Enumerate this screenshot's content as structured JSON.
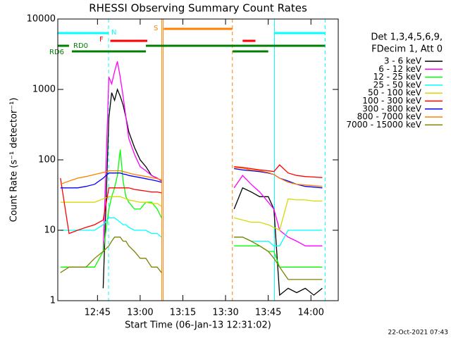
{
  "chart_data": {
    "type": "line",
    "title": "RHESSI Observing Summary Count Rates",
    "xlabel": "Start Time (06-Jan-13 12:31:02)",
    "ylabel": "Count Rate (s⁻¹ detector⁻¹)",
    "legend_header": [
      "Det 1,3,4,5,6,9,",
      "FDecim 1, Att 0"
    ],
    "footer": "22-Oct-2021 07:43",
    "log_y": true,
    "xlim": [
      31.05,
      129.6
    ],
    "ylim": [
      1,
      10000
    ],
    "xticks": [
      {
        "value": 45,
        "label": "12:45"
      },
      {
        "value": 60,
        "label": "13:00"
      },
      {
        "value": 75,
        "label": "13:15"
      },
      {
        "value": 90,
        "label": "13:30"
      },
      {
        "value": 105,
        "label": "13:45"
      },
      {
        "value": 120,
        "label": "14:00"
      }
    ],
    "yticks": [
      1,
      10,
      100,
      1000,
      10000
    ],
    "x": [
      32,
      35,
      38,
      41,
      44,
      47,
      49,
      50,
      51,
      52,
      53,
      54,
      55,
      56,
      58,
      60,
      62,
      64,
      66,
      67.5,
      80,
      93,
      96,
      99,
      102,
      105,
      107,
      109,
      112,
      115,
      118,
      121,
      124
    ],
    "series": [
      {
        "name": "3 - 6 keV",
        "color": "#000000",
        "values": [
          null,
          null,
          null,
          null,
          null,
          1.5,
          400,
          900,
          700,
          1000,
          800,
          600,
          400,
          250,
          150,
          100,
          80,
          60,
          55,
          50,
          null,
          20,
          40,
          35,
          30,
          30,
          20,
          1.2,
          1.5,
          1.3,
          1.5,
          1.2,
          1.5
        ]
      },
      {
        "name": "6 - 12 keV",
        "color": "#ff00ff",
        "values": [
          null,
          null,
          null,
          null,
          null,
          5,
          1500,
          1200,
          1800,
          2500,
          1500,
          800,
          400,
          200,
          120,
          80,
          70,
          60,
          55,
          50,
          null,
          40,
          60,
          45,
          35,
          25,
          20,
          10,
          8,
          7,
          6,
          6,
          6
        ]
      },
      {
        "name": "12 - 25 keV",
        "color": "#00ff00",
        "values": [
          3,
          3,
          3,
          3,
          3,
          5,
          20,
          30,
          40,
          60,
          140,
          50,
          30,
          25,
          20,
          20,
          25,
          25,
          20,
          15,
          null,
          6,
          6,
          6,
          6,
          5,
          5,
          3,
          3,
          3,
          3,
          3,
          3
        ]
      },
      {
        "name": "25 - 50 keV",
        "color": "#00ffff",
        "values": [
          10,
          10,
          10,
          10,
          10,
          12,
          15,
          15,
          15,
          14,
          13,
          12,
          12,
          11,
          10,
          10,
          10,
          9,
          9,
          8,
          null,
          8,
          8,
          7,
          7,
          7,
          6,
          6,
          10,
          10,
          10,
          10,
          10
        ]
      },
      {
        "name": "50 - 100 keV",
        "color": "#d8d800",
        "values": [
          25,
          25,
          25,
          25,
          25,
          28,
          30,
          30,
          30,
          30,
          30,
          29,
          28,
          27,
          26,
          25,
          25,
          24,
          24,
          22,
          null,
          15,
          14,
          13,
          13,
          12,
          11,
          10,
          28,
          27,
          27,
          26,
          26
        ]
      },
      {
        "name": "100 - 300 keV",
        "color": "#ff0000",
        "values": [
          55,
          9,
          10,
          11,
          12,
          14,
          40,
          40,
          40,
          40,
          40,
          40,
          40,
          40,
          38,
          37,
          36,
          35,
          35,
          34,
          null,
          80,
          78,
          75,
          72,
          70,
          68,
          85,
          65,
          60,
          58,
          57,
          56
        ]
      },
      {
        "name": "300 - 800 keV",
        "color": "#0000ff",
        "values": [
          40,
          40,
          40,
          42,
          45,
          55,
          65,
          65,
          65,
          65,
          65,
          63,
          62,
          60,
          58,
          56,
          54,
          52,
          50,
          48,
          null,
          75,
          72,
          70,
          68,
          65,
          62,
          55,
          50,
          45,
          42,
          41,
          40
        ]
      },
      {
        "name": "800 - 7000 keV",
        "color": "#ff8000",
        "values": [
          45,
          50,
          55,
          58,
          62,
          66,
          70,
          70,
          70,
          70,
          70,
          68,
          67,
          65,
          62,
          60,
          58,
          56,
          54,
          52,
          null,
          78,
          76,
          72,
          70,
          66,
          62,
          55,
          48,
          45,
          44,
          43,
          42
        ]
      },
      {
        "name": "7000 - 15000 keV",
        "color": "#808000",
        "values": [
          2.5,
          3,
          3,
          3,
          4,
          5,
          6,
          7,
          8,
          8,
          8,
          7,
          7,
          6,
          5,
          4,
          4,
          3,
          3,
          2.5,
          null,
          8,
          8,
          7,
          6,
          5,
          4,
          3,
          2,
          2,
          2,
          2,
          2
        ]
      }
    ],
    "flags": [
      {
        "label": "N",
        "color": "#00ffff",
        "segments": [
          [
            31.05,
            48.9
          ],
          [
            107.2,
            125
          ]
        ]
      },
      {
        "label": "F",
        "color": "#ff0000",
        "segments": [
          [
            49.5,
            62.5
          ],
          [
            96,
            100.5
          ]
        ]
      },
      {
        "label": "S",
        "color": "#ff8000",
        "segments": [
          [
            68.3,
            92.4
          ]
        ]
      },
      {
        "label": "RD0",
        "color": "#008000",
        "segments": [
          [
            31.05,
            35
          ],
          [
            62,
            125
          ]
        ]
      },
      {
        "label": "RD6",
        "color": "#008000",
        "segments": [
          [
            36,
            62
          ],
          [
            92.5,
            105
          ]
        ]
      }
    ],
    "vertical_lines": [
      {
        "x": 48.9,
        "color": "#00ffff",
        "style": "dashed"
      },
      {
        "x": 67.6,
        "color": "#ff8000",
        "style": "solid"
      },
      {
        "x": 68.1,
        "color": "#ff8000",
        "style": "solid"
      },
      {
        "x": 92.4,
        "color": "#ff8000",
        "style": "dashed"
      },
      {
        "x": 107.2,
        "color": "#00ffff",
        "style": "solid"
      },
      {
        "x": 125,
        "color": "#00ffff",
        "style": "dashed"
      }
    ]
  }
}
